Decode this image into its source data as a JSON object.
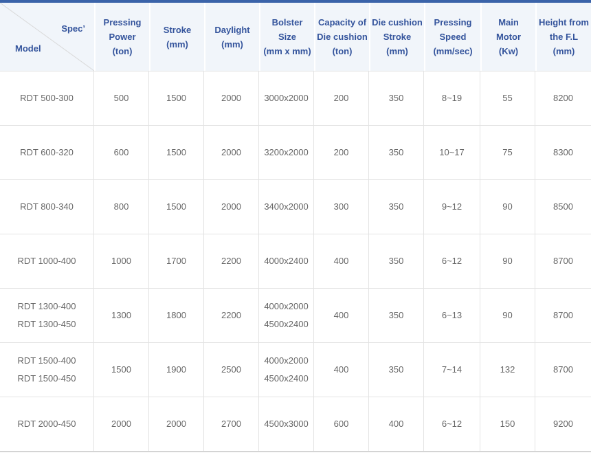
{
  "colors": {
    "accent": "#3a63a9",
    "header-bg": "#f1f5fa",
    "header-text": "#34549c",
    "grid-line": "#e3e3e3",
    "body-text": "#666666",
    "bottom-line": "#d4d4d4",
    "diagonal": "#d9d9d9"
  },
  "table": {
    "corner": {
      "spec_label": "Spec’",
      "model_label": "Model"
    },
    "columns": [
      {
        "key": "pressing-power",
        "lines": [
          "Pressing",
          "Power",
          "(ton)"
        ]
      },
      {
        "key": "stroke",
        "lines": [
          "Stroke",
          "(mm)"
        ]
      },
      {
        "key": "daylight",
        "lines": [
          "Daylight",
          "(mm)"
        ]
      },
      {
        "key": "bolster-size",
        "lines": [
          "Bolster",
          "Size",
          "(mm x mm)"
        ]
      },
      {
        "key": "die-cushion-capacity",
        "lines": [
          "Capacity of",
          "Die cushion",
          "(ton)"
        ]
      },
      {
        "key": "die-cushion-stroke",
        "lines": [
          "Die cushion",
          "Stroke",
          "(mm)"
        ]
      },
      {
        "key": "pressing-speed",
        "lines": [
          "Pressing",
          "Speed",
          "(mm/sec)"
        ]
      },
      {
        "key": "main-motor",
        "lines": [
          "Main",
          "Motor",
          "(Kw)"
        ]
      },
      {
        "key": "height-from-fl",
        "lines": [
          "Height from",
          "the F.L",
          "(mm)"
        ]
      }
    ],
    "rows": [
      {
        "model": [
          "RDT 500-300"
        ],
        "values": [
          [
            "500"
          ],
          [
            "1500"
          ],
          [
            "2000"
          ],
          [
            "3000x2000"
          ],
          [
            "200"
          ],
          [
            "350"
          ],
          [
            "8~19"
          ],
          [
            "55"
          ],
          [
            "8200"
          ]
        ]
      },
      {
        "model": [
          "RDT 600-320"
        ],
        "values": [
          [
            "600"
          ],
          [
            "1500"
          ],
          [
            "2000"
          ],
          [
            "3200x2000"
          ],
          [
            "200"
          ],
          [
            "350"
          ],
          [
            "10~17"
          ],
          [
            "75"
          ],
          [
            "8300"
          ]
        ]
      },
      {
        "model": [
          "RDT 800-340"
        ],
        "values": [
          [
            "800"
          ],
          [
            "1500"
          ],
          [
            "2000"
          ],
          [
            "3400x2000"
          ],
          [
            "300"
          ],
          [
            "350"
          ],
          [
            "9~12"
          ],
          [
            "90"
          ],
          [
            "8500"
          ]
        ]
      },
      {
        "model": [
          "RDT 1000-400"
        ],
        "values": [
          [
            "1000"
          ],
          [
            "1700"
          ],
          [
            "2200"
          ],
          [
            "4000x2400"
          ],
          [
            "400"
          ],
          [
            "350"
          ],
          [
            "6~12"
          ],
          [
            "90"
          ],
          [
            "8700"
          ]
        ]
      },
      {
        "model": [
          "RDT 1300-400",
          "RDT 1300-450"
        ],
        "values": [
          [
            "1300"
          ],
          [
            "1800"
          ],
          [
            "2200"
          ],
          [
            "4000x2000",
            "4500x2400"
          ],
          [
            "400"
          ],
          [
            "350"
          ],
          [
            "6~13"
          ],
          [
            "90"
          ],
          [
            "8700"
          ]
        ]
      },
      {
        "model": [
          "RDT 1500-400",
          "RDT 1500-450"
        ],
        "values": [
          [
            "1500"
          ],
          [
            "1900"
          ],
          [
            "2500"
          ],
          [
            "4000x2000",
            "4500x2400"
          ],
          [
            "400"
          ],
          [
            "350"
          ],
          [
            "7~14"
          ],
          [
            "132"
          ],
          [
            "8700"
          ]
        ]
      },
      {
        "model": [
          "RDT 2000-450"
        ],
        "values": [
          [
            "2000"
          ],
          [
            "2000"
          ],
          [
            "2700"
          ],
          [
            "4500x3000"
          ],
          [
            "600"
          ],
          [
            "400"
          ],
          [
            "6~12"
          ],
          [
            "150"
          ],
          [
            "9200"
          ]
        ]
      }
    ]
  }
}
